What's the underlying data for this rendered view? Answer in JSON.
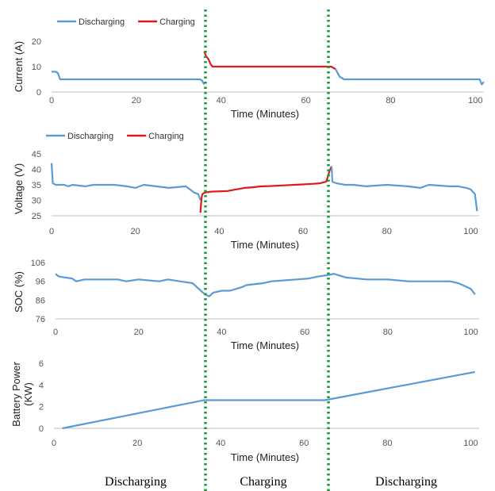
{
  "colors": {
    "discharging": "#5b9bd5",
    "charging": "#e0191a",
    "divider": "#1a9a3c",
    "axis": "#bfbfbf"
  },
  "phase_labels": [
    "Discharging",
    "Charging",
    "Discharging"
  ],
  "chart_data": [
    {
      "type": "line",
      "ylabel": "Current (A)",
      "xlabel": "Time (Minutes)",
      "xlim": [
        0,
        102
      ],
      "ylim": [
        0,
        20
      ],
      "yticks": [
        "0",
        "10",
        "20"
      ],
      "xticks": [
        "0",
        "20",
        "40",
        "60",
        "80",
        "100"
      ],
      "legend": [
        {
          "name": "Discharging",
          "color": "#5b9bd5"
        },
        {
          "name": "Charging",
          "color": "#e0191a"
        }
      ],
      "series": [
        {
          "name": "Discharging",
          "x": [
            0,
            1,
            1.5,
            2,
            35,
            35.5,
            36
          ],
          "y": [
            8,
            8,
            7.5,
            5,
            5,
            4.5,
            3
          ]
        },
        {
          "name": "Charging",
          "x": [
            36,
            36.5,
            37,
            37.5,
            38,
            66,
            66.5,
            67
          ],
          "y": [
            16,
            14,
            13,
            11,
            10,
            10,
            9.5,
            9
          ]
        },
        {
          "name": "Discharging",
          "x": [
            67,
            68,
            69,
            101,
            101.5,
            102
          ],
          "y": [
            9,
            6,
            5,
            5,
            3,
            4
          ]
        }
      ]
    },
    {
      "type": "line",
      "ylabel": "Voltage (V)",
      "xlabel": "Time (Minutes)",
      "xlim": [
        0,
        102
      ],
      "ylim": [
        25,
        45
      ],
      "yticks": [
        "25",
        "30",
        "35",
        "40",
        "45"
      ],
      "xticks": [
        "0",
        "20",
        "40",
        "60",
        "80",
        "100"
      ],
      "legend": [
        {
          "name": "Discharging",
          "color": "#5b9bd5"
        },
        {
          "name": "Charging",
          "color": "#e0191a"
        }
      ],
      "series": [
        {
          "name": "Discharging",
          "x": [
            0,
            0.3,
            1,
            3,
            4,
            5,
            8,
            10,
            15,
            18,
            20,
            22,
            28,
            32,
            33,
            34,
            35,
            35.5
          ],
          "y": [
            42,
            35.5,
            35,
            35,
            34.5,
            35,
            34.5,
            35,
            35,
            34.5,
            34,
            35,
            34,
            34.5,
            33.5,
            32.5,
            32,
            30
          ]
        },
        {
          "name": "Charging",
          "x": [
            35.5,
            35.8,
            36,
            36.5,
            38,
            42,
            44,
            46,
            48,
            50,
            52,
            55,
            58,
            61,
            64,
            65.5,
            66,
            66.3,
            66.8
          ],
          "y": [
            26,
            31,
            32,
            32.5,
            32.8,
            33,
            33.5,
            34,
            34.2,
            34.5,
            34.6,
            34.8,
            35,
            35.2,
            35.5,
            36,
            38,
            39.5,
            41
          ]
        },
        {
          "name": "Discharging",
          "x": [
            66.8,
            67,
            68,
            70,
            72,
            75,
            80,
            85,
            88,
            90,
            95,
            97,
            99,
            100,
            101,
            101.5
          ],
          "y": [
            41,
            36,
            35.5,
            35,
            35,
            34.5,
            35,
            34.5,
            34,
            35,
            34.5,
            34.5,
            34,
            33.5,
            32,
            26.5
          ]
        }
      ]
    },
    {
      "type": "line",
      "ylabel": "SOC (%)",
      "xlabel": "Time (Minutes)",
      "xlim": [
        0,
        102
      ],
      "ylim": [
        76,
        106
      ],
      "yticks": [
        "76",
        "86",
        "96",
        "106"
      ],
      "xticks": [
        "0",
        "20",
        "40",
        "60",
        "80",
        "100"
      ],
      "series": [
        {
          "name": "",
          "x": [
            0,
            0.5,
            1,
            4,
            5,
            7,
            10,
            15,
            17,
            20,
            25,
            27,
            30,
            33,
            34,
            35,
            36,
            37,
            38,
            40,
            42,
            45,
            46,
            50,
            52,
            55,
            58,
            61,
            63,
            66,
            67,
            70,
            75,
            80,
            85,
            90,
            95,
            97,
            98,
            100,
            101
          ],
          "y": [
            100,
            99,
            98.5,
            97.5,
            96,
            97,
            97,
            97,
            96,
            97,
            96,
            97,
            96,
            95,
            93,
            91,
            89,
            88,
            90,
            91,
            91,
            93,
            94,
            95,
            96,
            96.5,
            97,
            97.5,
            98.5,
            99.5,
            100,
            98,
            97,
            97,
            96,
            96,
            96,
            95,
            94,
            92,
            89
          ]
        }
      ]
    },
    {
      "type": "line",
      "ylabel": "Battery Power (KW)",
      "xlabel": "Time (Minutes)",
      "xlim": [
        0,
        102
      ],
      "ylim": [
        0,
        6
      ],
      "yticks": [
        "0",
        "2",
        "4",
        "6"
      ],
      "xticks": [
        "0",
        "20",
        "40",
        "60",
        "80",
        "100"
      ],
      "series": [
        {
          "name": "",
          "x": [
            2,
            36,
            65,
            101
          ],
          "y": [
            0,
            2.6,
            2.6,
            5.2
          ]
        }
      ]
    }
  ]
}
